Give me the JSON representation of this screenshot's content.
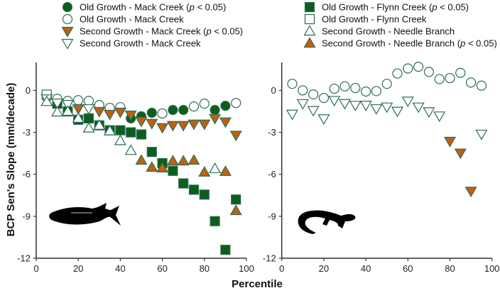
{
  "colors": {
    "green": "#0b5e1b",
    "orange": "#c2600e",
    "outline": "#2d6b55",
    "axis": "#333333"
  },
  "chart_data": [
    {
      "type": "scatter",
      "panel": "left",
      "icon": "fish-silhouette",
      "xlabel": "Percentile",
      "ylabel": "BCP Sen's Slope (mm/decade)",
      "xlim": [
        0,
        100
      ],
      "ylim": [
        -12,
        2
      ],
      "xticks": [
        "0",
        "20",
        "40",
        "60",
        "80",
        "100"
      ],
      "yticks": [
        "-12",
        "-9",
        "-6",
        "-3",
        "0"
      ],
      "x": [
        5,
        10,
        15,
        20,
        25,
        30,
        35,
        40,
        45,
        50,
        55,
        60,
        65,
        70,
        75,
        80,
        85,
        90,
        95
      ],
      "series": [
        {
          "name": "Old Growth - Mack Creek",
          "marker": "circle",
          "values": [
            -0.5,
            -0.6,
            -0.75,
            -0.7,
            -0.75,
            -1.05,
            -1.25,
            -1.2,
            -2.0,
            -1.85,
            -1.6,
            -1.65,
            -1.4,
            -1.4,
            -1.15,
            -0.95,
            -1.4,
            -1.1,
            -0.9
          ],
          "significant": [
            false,
            false,
            false,
            false,
            false,
            false,
            false,
            false,
            true,
            true,
            true,
            false,
            true,
            true,
            false,
            false,
            true,
            true,
            false
          ]
        },
        {
          "name": "Old Growth - Flynn Creek",
          "marker": "square",
          "values": [
            -0.3,
            -0.95,
            -1.5,
            -2.1,
            -2.0,
            -2.5,
            -2.85,
            -2.85,
            -3.0,
            -3.15,
            -4.4,
            -5.2,
            -5.75,
            -6.65,
            -7.1,
            -7.45,
            -9.35,
            -11.4,
            -7.8
          ],
          "significant": [
            false,
            true,
            true,
            true,
            true,
            true,
            true,
            true,
            true,
            true,
            true,
            true,
            true,
            true,
            true,
            true,
            true,
            true,
            true
          ]
        },
        {
          "name": "Second Growth - Mack Creek",
          "marker": "triangle-down",
          "values": [
            -0.6,
            -0.9,
            -1.0,
            -1.3,
            -1.3,
            -1.5,
            -1.7,
            -1.55,
            -1.75,
            -2.2,
            -2.35,
            -2.65,
            -2.5,
            -2.5,
            -2.4,
            -2.4,
            -2.0,
            -2.25,
            -3.2
          ],
          "significant": [
            false,
            false,
            false,
            true,
            false,
            true,
            true,
            true,
            true,
            true,
            true,
            true,
            true,
            true,
            true,
            true,
            true,
            true,
            true
          ]
        },
        {
          "name": "Second Growth - Needle Branch",
          "marker": "triangle-up",
          "values": [
            -0.8,
            -1.55,
            -1.5,
            -2.0,
            -2.7,
            -2.5,
            -2.9,
            -3.6,
            -4.3,
            -5.0,
            -5.5,
            -5.55,
            -5.05,
            -5.05,
            -5.0,
            -5.85,
            -5.6,
            -5.8,
            -8.6
          ],
          "significant": [
            false,
            false,
            false,
            false,
            false,
            false,
            false,
            false,
            false,
            true,
            true,
            true,
            true,
            true,
            true,
            true,
            false,
            true,
            true
          ]
        }
      ]
    },
    {
      "type": "scatter",
      "panel": "right",
      "icon": "salamander-silhouette",
      "xlim": [
        0,
        100
      ],
      "ylim": [
        -12,
        2
      ],
      "xticks": [
        "0",
        "20",
        "40",
        "60",
        "80",
        "100"
      ],
      "yticks": [
        "-12",
        "-9",
        "-6",
        "-3",
        "0"
      ],
      "x": [
        5,
        10,
        15,
        20,
        25,
        30,
        35,
        40,
        45,
        50,
        55,
        60,
        65,
        70,
        75,
        80,
        85,
        90,
        95
      ],
      "series": [
        {
          "name": "Old Growth - Mack Creek",
          "marker": "circle",
          "values": [
            0.47,
            0.0,
            -0.29,
            -0.54,
            0.12,
            0.29,
            0.17,
            -0.08,
            -0.05,
            0.47,
            1.21,
            1.57,
            1.69,
            1.32,
            0.81,
            0.88,
            1.26,
            0.56,
            0.34
          ],
          "significant": [
            false,
            false,
            false,
            false,
            false,
            false,
            false,
            false,
            false,
            false,
            false,
            false,
            false,
            false,
            false,
            false,
            false,
            false,
            false
          ]
        },
        {
          "name": "Second Growth - Mack Creek",
          "marker": "triangle-down",
          "values": [
            -1.69,
            -0.94,
            -1.43,
            -2.02,
            -0.71,
            -0.93,
            -1.06,
            -1.05,
            -1.3,
            -1.18,
            -1.48,
            -0.76,
            -1.18,
            -1.52,
            -1.82,
            -3.63,
            -4.47,
            -7.2,
            -3.12
          ],
          "significant": [
            false,
            false,
            false,
            false,
            false,
            false,
            false,
            false,
            false,
            false,
            false,
            false,
            false,
            false,
            false,
            true,
            true,
            true,
            false
          ]
        }
      ]
    }
  ],
  "legend": [
    {
      "marker": "circle",
      "filled": true,
      "label": "Old Growth - Mack Creek (",
      "italic": "p",
      "rest": " < 0.05)"
    },
    {
      "marker": "square",
      "filled": true,
      "label": "Old Growth - Flynn Creek (",
      "italic": "p",
      "rest": " < 0.05)"
    },
    {
      "marker": "circle",
      "filled": false,
      "label": "Old Growth - Mack Creek"
    },
    {
      "marker": "square",
      "filled": false,
      "label": "Old Growth - Flynn Creek"
    },
    {
      "marker": "triangle-down",
      "filled": true,
      "label": "Second Growth - Mack Creek (",
      "italic": "p",
      "rest": " < 0.05)"
    },
    {
      "marker": "triangle-up",
      "filled": false,
      "label": "Second Growth - Needle Branch"
    },
    {
      "marker": "triangle-down",
      "filled": false,
      "label": "Second Growth - Mack Creek"
    },
    {
      "marker": "triangle-up",
      "filled": true,
      "label": "Second Growth - Needle Branch (",
      "italic": "p",
      "rest": " < 0.05)"
    }
  ]
}
